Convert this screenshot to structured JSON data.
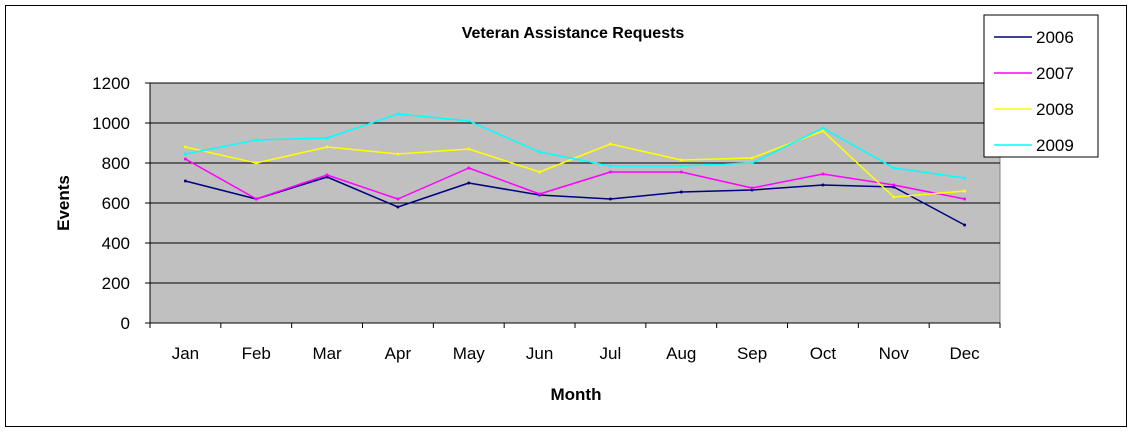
{
  "chart_data": {
    "type": "line",
    "title": "Veteran Assistance Requests",
    "xlabel": "Month",
    "ylabel": "Events",
    "categories": [
      "Jan",
      "Feb",
      "Mar",
      "Apr",
      "May",
      "Jun",
      "Jul",
      "Aug",
      "Sep",
      "Oct",
      "Nov",
      "Dec"
    ],
    "ylim": [
      0,
      1200
    ],
    "yticks": [
      0,
      200,
      400,
      600,
      800,
      1000,
      1200
    ],
    "grid": "horizontal",
    "legend_position": "top-right",
    "plot_background": "#c0c0c0",
    "series": [
      {
        "name": "2006",
        "color": "#000080",
        "values": [
          710,
          620,
          730,
          580,
          700,
          640,
          620,
          655,
          665,
          690,
          680,
          490
        ]
      },
      {
        "name": "2007",
        "color": "#ff00ff",
        "values": [
          820,
          620,
          740,
          620,
          775,
          645,
          755,
          755,
          675,
          745,
          690,
          620
        ]
      },
      {
        "name": "2008",
        "color": "#ffff00",
        "values": [
          880,
          800,
          880,
          845,
          870,
          755,
          895,
          815,
          825,
          960,
          630,
          660
        ]
      },
      {
        "name": "2009",
        "color": "#00ffff",
        "values": [
          845,
          915,
          925,
          1045,
          1010,
          855,
          785,
          785,
          800,
          975,
          775,
          725
        ]
      }
    ]
  }
}
